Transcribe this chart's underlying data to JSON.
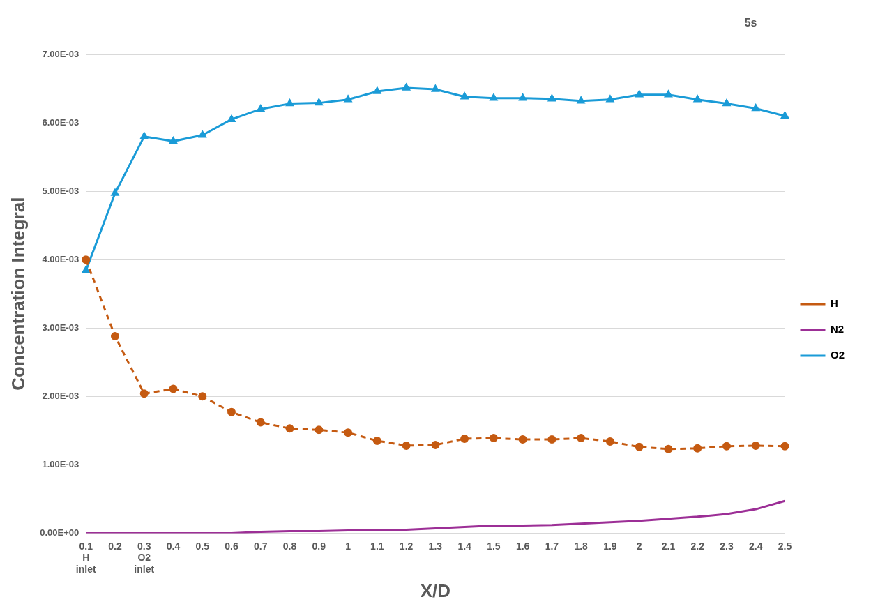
{
  "chart_data": {
    "type": "line",
    "xlabel": "X/D",
    "ylabel": "Concentration Integral",
    "annotations": [
      "5s"
    ],
    "categories": [
      "0.1\nH\ninlet",
      "0.2",
      "0.3\nO2\ninlet",
      "0.4",
      "0.5",
      "0.6",
      "0.7",
      "0.8",
      "0.9",
      "1",
      "1.1",
      "1.2",
      "1.3",
      "1.4",
      "1.5",
      "1.6",
      "1.7",
      "1.8",
      "1.9",
      "2",
      "2.1",
      "2.2",
      "2.3",
      "2.4",
      "2.5"
    ],
    "series": [
      {
        "name": "H",
        "color": "#c55a11",
        "marker": "circle",
        "line_style": "dashed",
        "values": [
          0.004,
          0.00288,
          0.00204,
          0.00211,
          0.002,
          0.00177,
          0.00162,
          0.00153,
          0.00151,
          0.00147,
          0.00135,
          0.00128,
          0.00129,
          0.00138,
          0.00139,
          0.00137,
          0.00137,
          0.00139,
          0.00134,
          0.00126,
          0.00123,
          0.00124,
          0.00127,
          0.00128,
          0.00127
        ]
      },
      {
        "name": "N2",
        "color": "#9c2f96",
        "marker": "none",
        "line_style": "solid",
        "values": [
          0,
          0,
          0,
          0,
          0,
          0,
          2e-05,
          3e-05,
          3e-05,
          4e-05,
          4e-05,
          5e-05,
          7e-05,
          9e-05,
          0.00011,
          0.00011,
          0.00012,
          0.00014,
          0.00016,
          0.00018,
          0.00021,
          0.00024,
          0.00028,
          0.00035,
          0.00047
        ]
      },
      {
        "name": "O2",
        "color": "#1a9bd7",
        "marker": "triangle",
        "line_style": "solid",
        "values": [
          0.00384,
          0.00497,
          0.0058,
          0.00573,
          0.00582,
          0.00605,
          0.0062,
          0.00628,
          0.00629,
          0.00634,
          0.00646,
          0.00651,
          0.00649,
          0.00638,
          0.00636,
          0.00636,
          0.00635,
          0.00632,
          0.00634,
          0.00641,
          0.00641,
          0.00634,
          0.00628,
          0.00621,
          0.0061
        ]
      }
    ],
    "ylim": [
      0,
      0.007
    ],
    "yticks": [
      {
        "value": 0,
        "label": "0.00E+00"
      },
      {
        "value": 0.001,
        "label": "1.00E-03"
      },
      {
        "value": 0.002,
        "label": "2.00E-03"
      },
      {
        "value": 0.003,
        "label": "3.00E-03"
      },
      {
        "value": 0.004,
        "label": "4.00E-03"
      },
      {
        "value": 0.005,
        "label": "5.00E-03"
      },
      {
        "value": 0.006,
        "label": "6.00E-03"
      },
      {
        "value": 0.007,
        "label": "7.00E-03"
      }
    ],
    "grid": "y",
    "legend": "right"
  }
}
